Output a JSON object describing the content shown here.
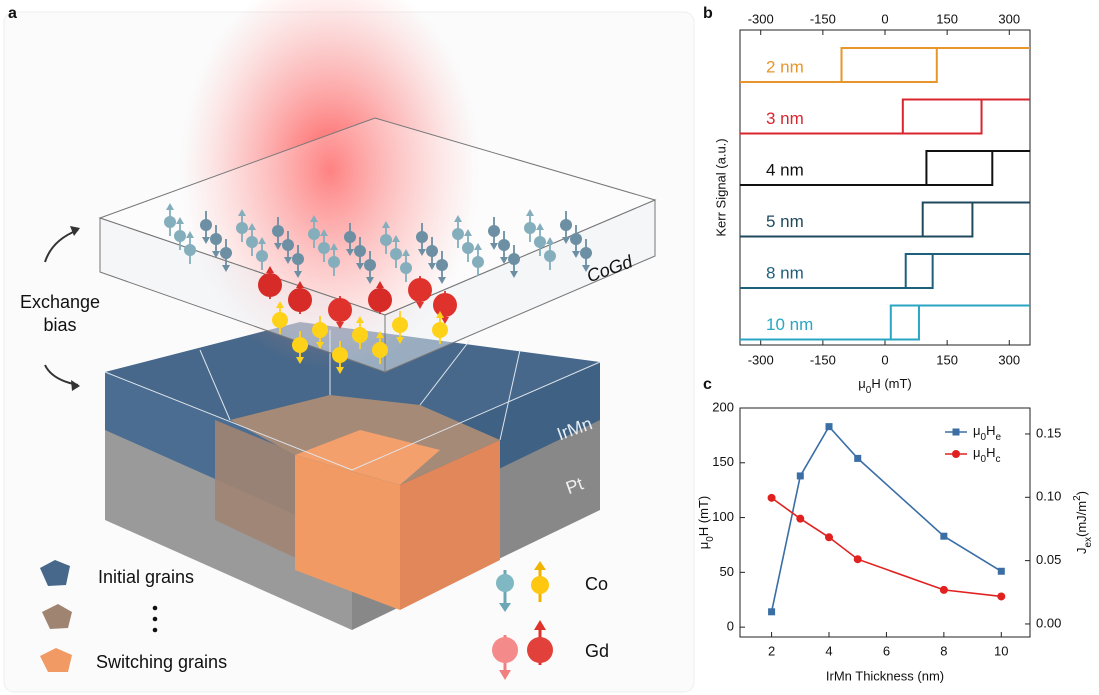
{
  "figure": {
    "panel_labels": [
      "a",
      "b",
      "c"
    ]
  },
  "diagram": {
    "exchange_bias": [
      "Exchange",
      "bias"
    ],
    "layers": [
      "CoGd",
      "IrMn",
      "Pt"
    ],
    "legend": {
      "grains": [
        "Initial grains",
        "Switching grains"
      ],
      "spins": [
        "Co",
        "Gd"
      ]
    }
  },
  "chart_data": [
    {
      "type": "hysteresis",
      "ylabel": "Kerr Signal (a.u.)",
      "xlabel": [
        "μ",
        "0",
        "H (mT)"
      ],
      "xlim": [
        -350,
        350
      ],
      "xticks": [
        -300,
        -150,
        0,
        150,
        300
      ],
      "series": [
        {
          "name": "2 nm",
          "color": "#e8952b",
          "values": [
            -105,
            125
          ]
        },
        {
          "name": "3 nm",
          "color": "#d9262e",
          "values": [
            43,
            233
          ]
        },
        {
          "name": "4 nm",
          "color": "#111111",
          "values": [
            100,
            259
          ]
        },
        {
          "name": "5 nm",
          "color": "#1f4a5e",
          "values": [
            91,
            211
          ]
        },
        {
          "name": "8 nm",
          "color": "#1e5f7a",
          "values": [
            50,
            115
          ]
        },
        {
          "name": "10 nm",
          "color": "#2aa6c4",
          "values": [
            14,
            82
          ]
        }
      ]
    },
    {
      "type": "line",
      "xlabel": "IrMn Thickness (nm)",
      "ylabel": [
        "μ",
        "0",
        "H (mT)"
      ],
      "y2label": [
        "J",
        "ex",
        "(mJ/m",
        "2",
        ")"
      ],
      "x": [
        2,
        3,
        4,
        5,
        8,
        10
      ],
      "xlim": [
        0.9,
        11
      ],
      "xticks": [
        2,
        4,
        6,
        8,
        10
      ],
      "ylim": [
        -9,
        200
      ],
      "yticks": [
        0,
        50,
        100,
        150,
        200
      ],
      "y2lim": [
        -0.0103,
        0.1705
      ],
      "y2ticks": [
        {
          "value": 0,
          "label": "0.00"
        },
        {
          "value": 0.05,
          "label": "0.05"
        },
        {
          "value": 0.1,
          "label": "0.10"
        },
        {
          "value": 0.15,
          "label": "0.15"
        }
      ],
      "legend": "upper right",
      "series": [
        {
          "name": [
            "μ",
            "0",
            "H",
            "e"
          ],
          "color": "#3a6ea5",
          "marker": "square",
          "values": [
            14,
            138,
            183,
            154,
            83,
            51
          ]
        },
        {
          "name": [
            "μ",
            "0",
            "H",
            "c"
          ],
          "color": "#e0211f",
          "marker": "circle",
          "values": [
            118,
            99,
            82,
            62,
            34,
            28
          ]
        }
      ]
    }
  ]
}
